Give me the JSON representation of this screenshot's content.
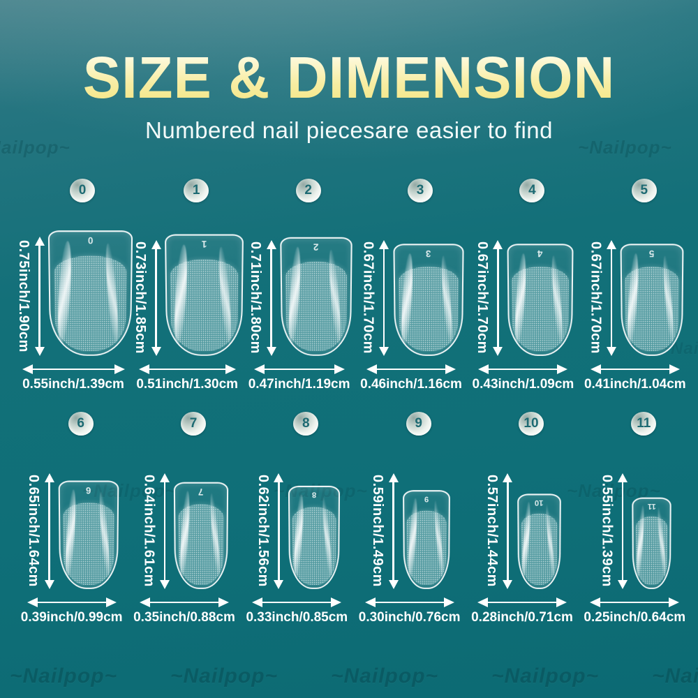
{
  "title": "SIZE & DIMENSION",
  "subtitle": "Numbered nail piecesare easier to find",
  "watermark": "~Nailpop~",
  "colors": {
    "background_teal": "#107078",
    "title_yellow": "#f5e88c",
    "text_white": "#ffffff",
    "badge_number_teal": "#1d6a72"
  },
  "rows": [
    {
      "nails": [
        {
          "number": "0",
          "length": "0.75inch/1.90cm",
          "width": "0.55inch/1.39cm"
        },
        {
          "number": "1",
          "length": "0.73inch/1.85cm",
          "width": "0.51inch/1.30cm"
        },
        {
          "number": "2",
          "length": "0.71inch/1.80cm",
          "width": "0.47inch/1.19cm"
        },
        {
          "number": "3",
          "length": "0.67inch/1.70cm",
          "width": "0.46inch/1.16cm"
        },
        {
          "number": "4",
          "length": "0.67inch/1.70cm",
          "width": "0.43inch/1.09cm"
        },
        {
          "number": "5",
          "length": "0.67inch/1.70cm",
          "width": "0.41inch/1.04cm"
        }
      ]
    },
    {
      "nails": [
        {
          "number": "6",
          "length": "0.65inch/1.64cm",
          "width": "0.39inch/0.99cm"
        },
        {
          "number": "7",
          "length": "0.64inch/1.61cm",
          "width": "0.35inch/0.88cm"
        },
        {
          "number": "8",
          "length": "0.62inch/1.56cm",
          "width": "0.33inch/0.85cm"
        },
        {
          "number": "9",
          "length": "0.59inch/1.49cm",
          "width": "0.30inch/0.76cm"
        },
        {
          "number": "10",
          "length": "0.57inch/1.44cm",
          "width": "0.28inch/0.71cm"
        },
        {
          "number": "11",
          "length": "0.55inch/1.39cm",
          "width": "0.25inch/0.64cm"
        }
      ]
    }
  ]
}
